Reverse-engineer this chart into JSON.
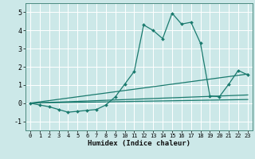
{
  "title": "",
  "xlabel": "Humidex (Indice chaleur)",
  "ylabel": "",
  "xlim": [
    -0.5,
    23.5
  ],
  "ylim": [
    -1.5,
    5.5
  ],
  "yticks": [
    -1,
    0,
    1,
    2,
    3,
    4,
    5
  ],
  "xticks": [
    0,
    1,
    2,
    3,
    4,
    5,
    6,
    7,
    8,
    9,
    10,
    11,
    12,
    13,
    14,
    15,
    16,
    17,
    18,
    19,
    20,
    21,
    22,
    23
  ],
  "bg_color": "#cce8e8",
  "line_color": "#1a7a6e",
  "grid_color": "#ffffff",
  "line1_x": [
    0,
    1,
    2,
    3,
    4,
    5,
    6,
    7,
    8,
    9,
    10,
    11,
    12,
    13,
    14,
    15,
    16,
    17,
    18,
    19,
    20,
    21,
    22,
    23
  ],
  "line1_y": [
    0.0,
    -0.1,
    -0.2,
    -0.35,
    -0.5,
    -0.45,
    -0.4,
    -0.35,
    -0.1,
    0.35,
    1.05,
    1.75,
    4.3,
    4.0,
    3.55,
    4.95,
    4.35,
    4.45,
    3.3,
    0.4,
    0.35,
    1.05,
    1.8,
    1.55
  ],
  "line2_x": [
    0,
    23
  ],
  "line2_y": [
    0.0,
    1.6
  ],
  "line3_x": [
    0,
    23
  ],
  "line3_y": [
    0.0,
    0.45
  ],
  "line4_x": [
    0,
    23
  ],
  "line4_y": [
    0.0,
    0.2
  ]
}
